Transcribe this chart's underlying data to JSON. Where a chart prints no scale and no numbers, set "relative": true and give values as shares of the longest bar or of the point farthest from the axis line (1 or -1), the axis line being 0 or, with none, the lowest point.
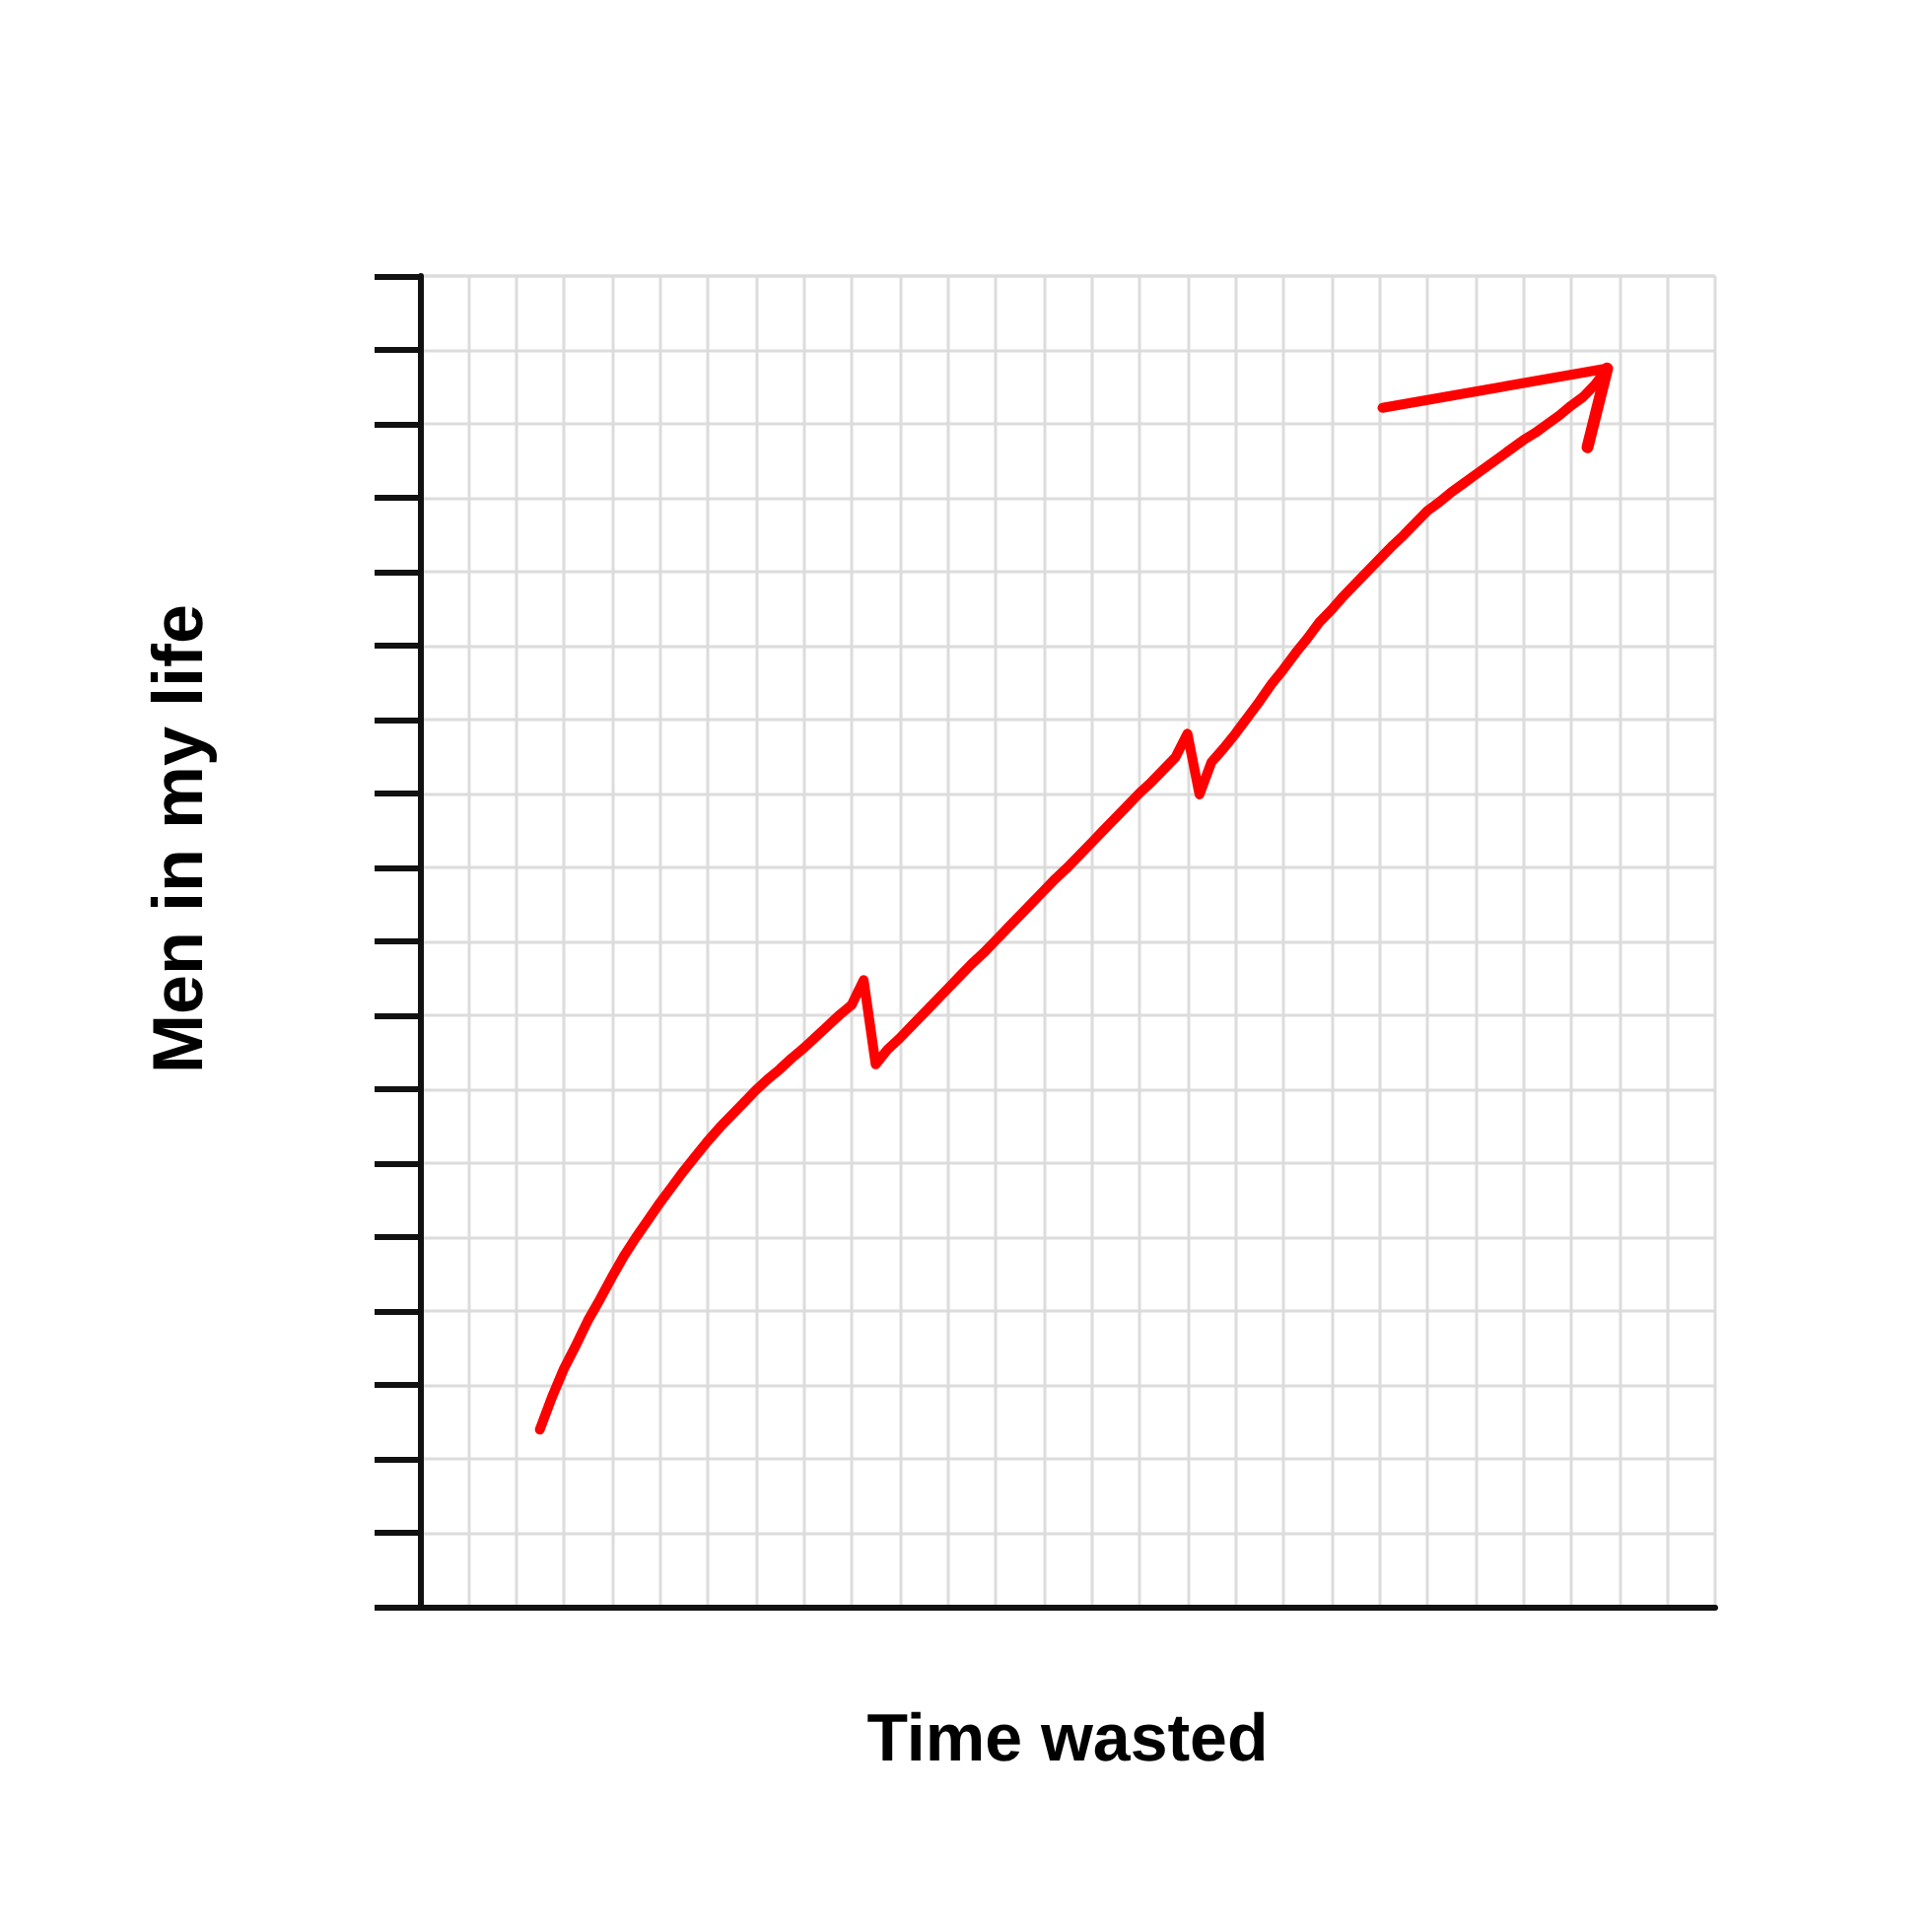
{
  "chart_data": {
    "type": "line",
    "xlabel": "Time wasted",
    "ylabel": "Men in my life",
    "relative": true,
    "categories": [
      null,
      null,
      null,
      null,
      null,
      null,
      null,
      null,
      null,
      null,
      null,
      null,
      null,
      null,
      null,
      null,
      null,
      null,
      null,
      null,
      null,
      null,
      null,
      null,
      null,
      null,
      null,
      null,
      null,
      null,
      null,
      null,
      null,
      null,
      null,
      null,
      null,
      null,
      null,
      null,
      null,
      null,
      null,
      null,
      null,
      null,
      null,
      null,
      null,
      null,
      null,
      null,
      null,
      null,
      null,
      null,
      null,
      null,
      null,
      null,
      null,
      null,
      null,
      null,
      null,
      null,
      null,
      null,
      null,
      null,
      null,
      null,
      null,
      null,
      null,
      null,
      null,
      null,
      null,
      null,
      null,
      null,
      null,
      null,
      null,
      null,
      null,
      null,
      null,
      null,
      null,
      null,
      null,
      null,
      null,
      null,
      null,
      null,
      null,
      null,
      null,
      null,
      null,
      null,
      null,
      null,
      null,
      null,
      null
    ],
    "values": [
      null,
      null,
      null,
      null,
      null,
      null,
      null,
      null,
      null,
      null,
      0.143,
      0.169,
      0.192,
      0.211,
      0.231,
      0.248,
      0.266,
      0.283,
      0.298,
      0.312,
      0.326,
      0.339,
      0.352,
      0.364,
      0.376,
      0.387,
      0.397,
      0.407,
      0.417,
      0.426,
      0.434,
      0.443,
      0.451,
      0.46,
      0.469,
      0.478,
      0.486,
      0.506,
      0.438,
      0.45,
      0.459,
      0.469,
      0.479,
      0.489,
      0.499,
      0.509,
      0.519,
      0.528,
      0.538,
      0.548,
      0.558,
      0.568,
      0.578,
      0.588,
      0.597,
      0.607,
      0.617,
      0.627,
      0.637,
      0.647,
      0.657,
      0.666,
      0.676,
      0.686,
      0.705,
      0.656,
      0.682,
      0.693,
      0.705,
      0.718,
      0.731,
      0.745,
      0.757,
      0.77,
      0.782,
      0.795,
      0.805,
      0.816,
      0.826,
      0.836,
      0.846,
      0.856,
      0.865,
      0.875,
      0.885,
      0.892,
      0.9,
      0.907,
      0.914,
      0.921,
      0.928,
      0.935,
      0.942,
      0.948,
      0.955,
      0.962,
      0.97,
      0.977,
      0.987,
      1,
      null,
      null,
      null,
      null,
      null,
      null,
      null,
      null,
      null
    ],
    "color": "#ff0000",
    "grid": true,
    "marker": "none"
  }
}
